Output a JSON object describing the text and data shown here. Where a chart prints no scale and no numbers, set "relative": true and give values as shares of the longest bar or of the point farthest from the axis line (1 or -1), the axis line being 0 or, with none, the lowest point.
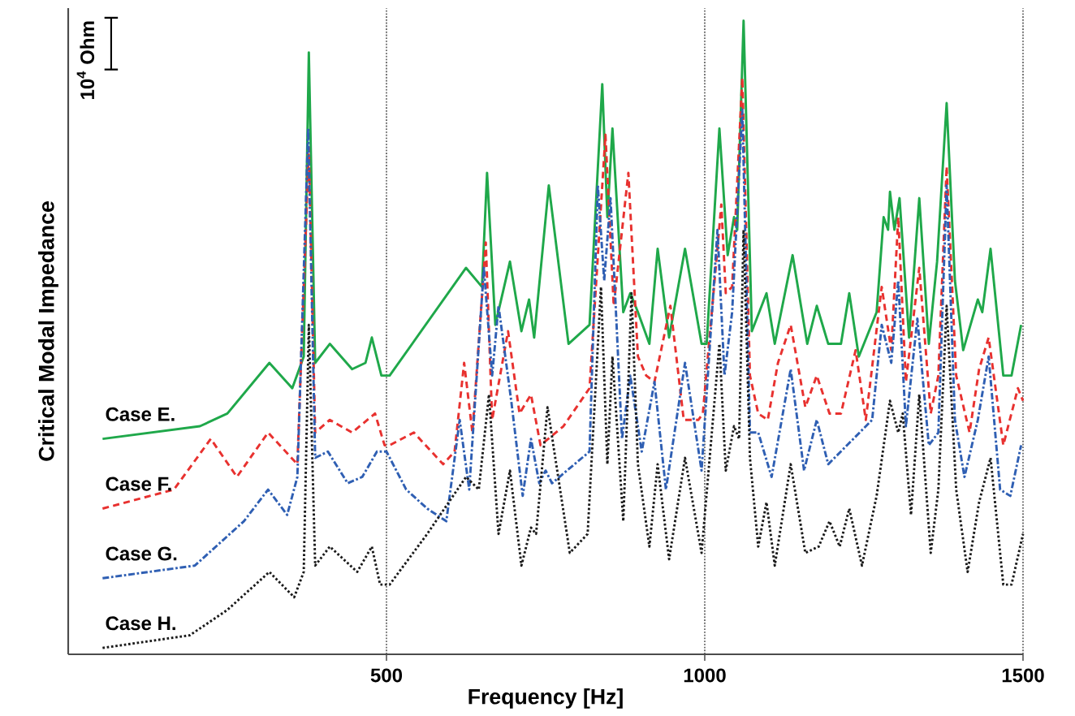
{
  "chart_data": {
    "type": "line",
    "xlabel": "Frequency [Hz]",
    "ylabel": "Critical Modal Impedance",
    "relative": true,
    "xlim": [
      0,
      1500
    ],
    "xticks": [
      500,
      1000,
      1500
    ],
    "grid": "x",
    "legend": false,
    "marker": "none",
    "annotations": [
      "10$^{4}$ Ohm"
    ],
    "series": [
      {
        "name": "Case E.",
        "color": "#1fa84a",
        "line_style": "solid",
        "x": [
          54,
          207,
          250,
          316,
          352,
          370,
          378,
          388,
          411,
          446,
          467,
          477,
          492,
          505,
          625,
          650,
          658,
          671,
          694,
          712,
          724,
          732,
          755,
          786,
          819,
          839,
          847,
          855,
          872,
          883,
          895,
          913,
          926,
          944,
          969,
          995,
          1003,
          1023,
          1036,
          1046,
          1051,
          1061,
          1074,
          1097,
          1110,
          1138,
          1161,
          1176,
          1194,
          1214,
          1227,
          1242,
          1270,
          1281,
          1288,
          1291,
          1298,
          1306,
          1321,
          1337,
          1352,
          1365,
          1380,
          1393,
          1406,
          1429,
          1436,
          1449,
          1469,
          1482,
          1497
        ],
        "values": [
          0.34,
          0.36,
          0.38,
          0.46,
          0.42,
          0.47,
          0.95,
          0.46,
          0.49,
          0.45,
          0.46,
          0.5,
          0.44,
          0.44,
          0.61,
          0.58,
          0.76,
          0.52,
          0.62,
          0.51,
          0.56,
          0.5,
          0.74,
          0.49,
          0.52,
          0.9,
          0.69,
          0.83,
          0.54,
          0.57,
          0.54,
          0.49,
          0.64,
          0.5,
          0.64,
          0.49,
          0.49,
          0.83,
          0.63,
          0.69,
          0.67,
          1.0,
          0.51,
          0.57,
          0.49,
          0.63,
          0.49,
          0.55,
          0.49,
          0.49,
          0.57,
          0.47,
          0.54,
          0.69,
          0.67,
          0.73,
          0.67,
          0.72,
          0.5,
          0.72,
          0.49,
          0.62,
          0.87,
          0.59,
          0.48,
          0.56,
          0.54,
          0.64,
          0.44,
          0.44,
          0.52
        ]
      },
      {
        "name": "Case F.",
        "color": "#e8312f",
        "line_style": "dashed",
        "x": [
          54,
          166,
          224,
          265,
          314,
          360,
          378,
          388,
          411,
          446,
          482,
          497,
          505,
          543,
          589,
          607,
          622,
          635,
          656,
          666,
          691,
          709,
          727,
          742,
          778,
          819,
          844,
          857,
          880,
          895,
          908,
          921,
          946,
          967,
          990,
          997,
          1026,
          1033,
          1043,
          1059,
          1071,
          1084,
          1099,
          1115,
          1135,
          1158,
          1176,
          1196,
          1214,
          1237,
          1253,
          1278,
          1293,
          1304,
          1316,
          1337,
          1355,
          1367,
          1380,
          1395,
          1416,
          1431,
          1446,
          1469,
          1492,
          1500
        ],
        "values": [
          0.23,
          0.26,
          0.34,
          0.28,
          0.35,
          0.3,
          0.8,
          0.35,
          0.37,
          0.35,
          0.38,
          0.33,
          0.33,
          0.35,
          0.3,
          0.32,
          0.46,
          0.35,
          0.65,
          0.37,
          0.51,
          0.38,
          0.41,
          0.33,
          0.36,
          0.42,
          0.82,
          0.55,
          0.76,
          0.47,
          0.44,
          0.43,
          0.55,
          0.37,
          0.37,
          0.38,
          0.71,
          0.57,
          0.58,
          0.91,
          0.44,
          0.38,
          0.37,
          0.46,
          0.52,
          0.39,
          0.44,
          0.38,
          0.38,
          0.48,
          0.37,
          0.58,
          0.48,
          0.69,
          0.43,
          0.61,
          0.38,
          0.44,
          0.77,
          0.44,
          0.35,
          0.45,
          0.5,
          0.33,
          0.42,
          0.4
        ]
      },
      {
        "name": "Case G.",
        "color": "#2f5fb3",
        "line_style": "dashdot",
        "x": [
          54,
          199,
          276,
          314,
          344,
          360,
          377,
          388,
          408,
          439,
          462,
          485,
          500,
          531,
          564,
          594,
          615,
          630,
          653,
          666,
          676,
          696,
          714,
          727,
          740,
          750,
          760,
          819,
          832,
          842,
          852,
          870,
          883,
          901,
          921,
          939,
          969,
          995,
          1020,
          1031,
          1043,
          1059,
          1071,
          1084,
          1105,
          1135,
          1156,
          1176,
          1194,
          1263,
          1278,
          1293,
          1304,
          1316,
          1334,
          1352,
          1367,
          1380,
          1393,
          1408,
          1429,
          1446,
          1464,
          1480,
          1497
        ],
        "values": [
          0.12,
          0.14,
          0.21,
          0.26,
          0.22,
          0.28,
          0.83,
          0.31,
          0.32,
          0.27,
          0.28,
          0.32,
          0.32,
          0.26,
          0.23,
          0.21,
          0.37,
          0.26,
          0.61,
          0.44,
          0.55,
          0.4,
          0.25,
          0.34,
          0.27,
          0.29,
          0.27,
          0.32,
          0.74,
          0.59,
          0.72,
          0.34,
          0.44,
          0.32,
          0.43,
          0.26,
          0.46,
          0.29,
          0.67,
          0.44,
          0.54,
          0.86,
          0.35,
          0.35,
          0.28,
          0.45,
          0.29,
          0.37,
          0.3,
          0.37,
          0.52,
          0.46,
          0.59,
          0.36,
          0.53,
          0.33,
          0.35,
          0.74,
          0.37,
          0.28,
          0.37,
          0.47,
          0.26,
          0.25,
          0.33
        ]
      },
      {
        "name": "Case H.",
        "color": "#1a1a1a",
        "line_style": "dotted",
        "x": [
          54,
          191,
          250,
          316,
          355,
          370,
          378,
          388,
          411,
          454,
          477,
          490,
          505,
          564,
          625,
          645,
          661,
          676,
          694,
          712,
          727,
          735,
          753,
          788,
          816,
          837,
          847,
          855,
          872,
          885,
          895,
          913,
          926,
          944,
          969,
          995,
          1023,
          1033,
          1046,
          1054,
          1061,
          1071,
          1084,
          1097,
          1110,
          1135,
          1158,
          1179,
          1196,
          1212,
          1227,
          1247,
          1270,
          1291,
          1304,
          1311,
          1324,
          1337,
          1355,
          1367,
          1380,
          1395,
          1413,
          1431,
          1449,
          1469,
          1482,
          1500
        ],
        "values": [
          0.01,
          0.03,
          0.07,
          0.13,
          0.09,
          0.13,
          0.52,
          0.14,
          0.17,
          0.13,
          0.17,
          0.11,
          0.11,
          0.19,
          0.28,
          0.26,
          0.41,
          0.19,
          0.29,
          0.14,
          0.2,
          0.19,
          0.39,
          0.16,
          0.19,
          0.58,
          0.3,
          0.47,
          0.21,
          0.57,
          0.3,
          0.17,
          0.3,
          0.15,
          0.31,
          0.16,
          0.49,
          0.29,
          0.36,
          0.34,
          0.67,
          0.31,
          0.17,
          0.24,
          0.14,
          0.3,
          0.16,
          0.17,
          0.21,
          0.17,
          0.23,
          0.14,
          0.25,
          0.4,
          0.35,
          0.38,
          0.22,
          0.41,
          0.16,
          0.26,
          0.55,
          0.26,
          0.13,
          0.24,
          0.31,
          0.11,
          0.11,
          0.19
        ]
      }
    ]
  }
}
